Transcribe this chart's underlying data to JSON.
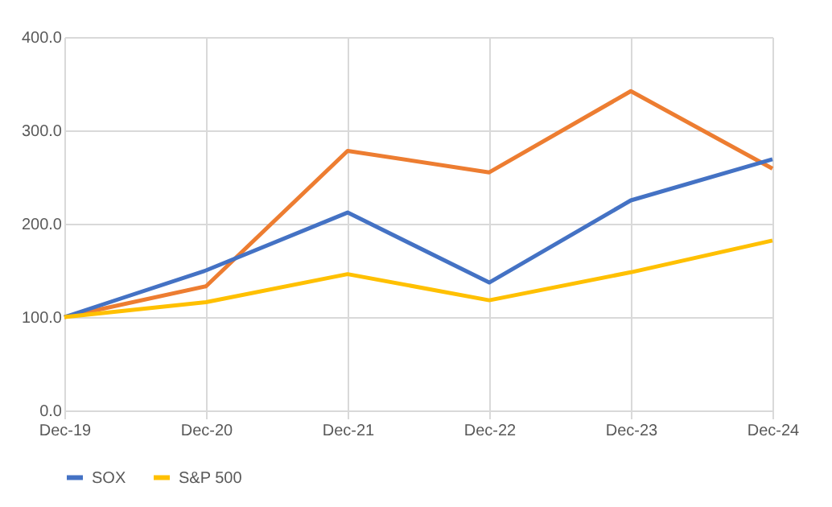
{
  "chart_data": {
    "type": "line",
    "categories": [
      "Dec-19",
      "Dec-20",
      "Dec-21",
      "Dec-22",
      "Dec-23",
      "Dec-24"
    ],
    "series": [
      {
        "color": "#ed7d31",
        "values": [
          100,
          133,
          278,
          255,
          342,
          259
        ]
      },
      {
        "name": "SOX",
        "color": "#4472c4",
        "values": [
          100,
          150,
          212,
          137,
          225,
          269
        ]
      },
      {
        "name": "S&P 500",
        "color": "#ffc000",
        "values": [
          100,
          116,
          146,
          118,
          148,
          182
        ]
      }
    ],
    "ylim": [
      0,
      400
    ],
    "yticks": [
      {
        "value": 0,
        "label": "0.0"
      },
      {
        "value": 100,
        "label": "100.0"
      },
      {
        "value": 200,
        "label": "200.0"
      },
      {
        "value": 300,
        "label": "300.0"
      },
      {
        "value": 400,
        "label": "400.0"
      }
    ],
    "grid": true,
    "legend": "bottom",
    "marker": "none",
    "line_style": "solid"
  }
}
